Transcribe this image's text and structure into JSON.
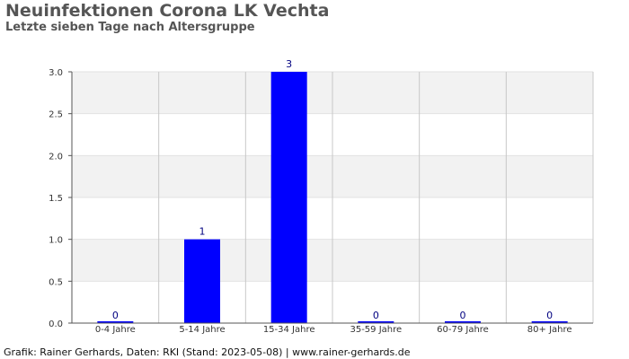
{
  "chart_data": {
    "type": "bar",
    "title": "Neuinfektionen Corona LK Vechta",
    "subtitle": "Letzte sieben Tage nach Altersgruppe",
    "categories": [
      "0-4 Jahre",
      "5-14 Jahre",
      "15-34 Jahre",
      "35-59 Jahre",
      "60-79 Jahre",
      "80+ Jahre"
    ],
    "values": [
      0,
      1,
      3,
      0,
      0,
      0
    ],
    "data_labels": [
      "0",
      "1",
      "3",
      "0",
      "0",
      "0"
    ],
    "ylim": [
      0,
      3.0
    ],
    "yticks": [
      "0.0",
      "0.5",
      "1.0",
      "1.5",
      "2.0",
      "2.5",
      "3.0"
    ],
    "ytick_values": [
      0,
      0.5,
      1.0,
      1.5,
      2.0,
      2.5,
      3.0
    ],
    "xlabel": "",
    "ylabel": "",
    "grid": true,
    "legend": "none",
    "colors": {
      "bar": "#0000ff",
      "band": "#f2f2f2",
      "gridline": "#c8c8c8",
      "text": "#555555"
    }
  },
  "footer": "Grafik: Rainer Gerhards, Daten: RKI (Stand: 2023-05-08) | www.rainer-gerhards.de"
}
